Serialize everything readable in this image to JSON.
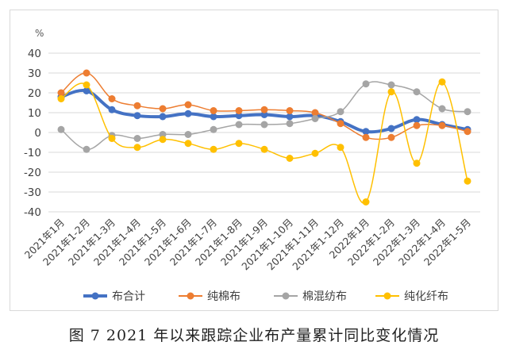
{
  "caption": "图 7   2021 年以来跟踪企业布产量累计同比变化情况",
  "chart_data": {
    "type": "line",
    "ylabel": "%",
    "ylim": [
      -40,
      40
    ],
    "yticks": [
      40,
      30,
      20,
      10,
      0,
      -10,
      -20,
      -30,
      -40
    ],
    "grid": true,
    "legend": "bottom",
    "smooth": true,
    "categories": [
      "2021年1月",
      "2021年1-2月",
      "2021年1-3月",
      "2021年1-4月",
      "2021年1-5月",
      "2021年1-6月",
      "2021年1-7月",
      "2021年1-8月",
      "2021年1-9月",
      "2021年1-10月",
      "2021年1-11月",
      "2021年1-12月",
      "2022年1月",
      "2022年1-2月",
      "2022年1-3月",
      "2022年1-4月",
      "2022年1-5月"
    ],
    "series": [
      {
        "name": "布合计",
        "color": "#4472c4",
        "width": 4,
        "values": [
          18,
          21,
          11.5,
          8.5,
          8,
          9.5,
          8,
          8.5,
          9,
          8,
          8.5,
          5.5,
          0.5,
          2,
          6.5,
          4,
          1.5
        ]
      },
      {
        "name": "纯棉布",
        "color": "#ed7d31",
        "width": 1.5,
        "values": [
          20,
          30,
          17,
          13.5,
          12,
          14,
          11,
          11,
          11.5,
          11,
          10,
          4.5,
          -2.5,
          -2.5,
          3.5,
          3.5,
          0.5
        ]
      },
      {
        "name": "棉混纺布",
        "color": "#a5a5a5",
        "width": 1.5,
        "values": [
          1.5,
          -8.5,
          -1.5,
          -3,
          -1,
          -1,
          1.5,
          4,
          4,
          4.5,
          7,
          10.5,
          24.5,
          24,
          20.5,
          12,
          10.5
        ]
      },
      {
        "name": "纯化纤布",
        "color": "#ffc000",
        "width": 1.5,
        "values": [
          17,
          24,
          -3,
          -7.5,
          -3.5,
          -5.5,
          -8.5,
          -5.5,
          -8.5,
          -13,
          -10.5,
          -7.5,
          -35,
          20.5,
          -15.5,
          25.5,
          -24.5
        ]
      }
    ]
  }
}
